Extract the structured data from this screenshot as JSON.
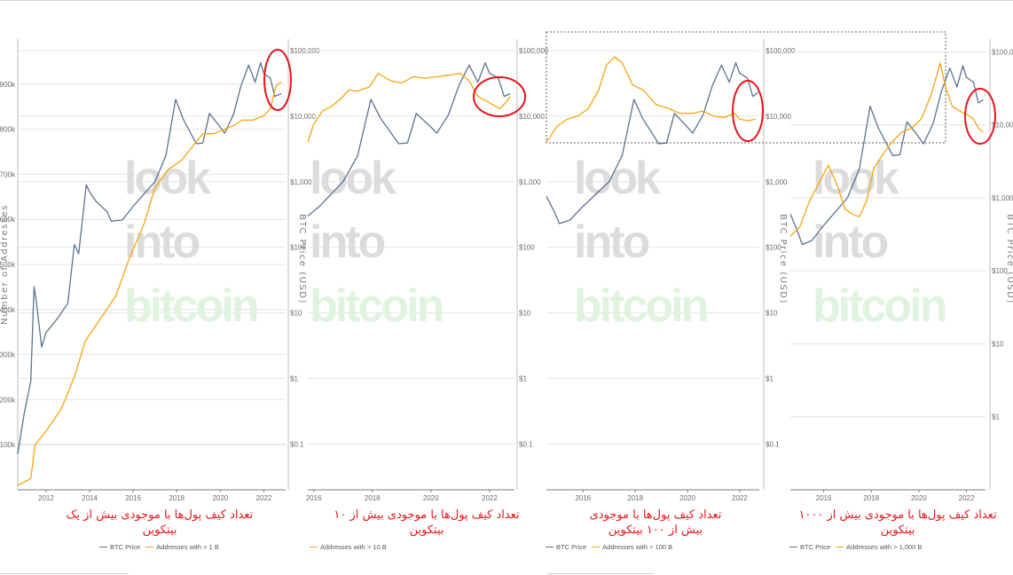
{
  "colors": {
    "btc": "#5b7290",
    "addresses": "#f6a50f",
    "highlight": "#e8141b",
    "caption": "#e5171b",
    "grid": "#e4e4e4",
    "watermark_dark": "#dcdcdc",
    "watermark_green": "#dff3df"
  },
  "watermark": [
    "look",
    "into",
    "bitcoin"
  ],
  "chart_data": [
    {
      "type": "line",
      "caption": "تعداد کیف پول‌ها با موجودی بیش از یک بیتکوین",
      "left_axis_title": "Number of Addresses",
      "right_axis_title": "BTC Price (USD)",
      "left_ticks": [
        "100k",
        "200k",
        "300k",
        "400k",
        "500k",
        "600k",
        "700k",
        "800k",
        "900k"
      ],
      "left_tick_values": [
        100000,
        200000,
        300000,
        400000,
        500000,
        600000,
        700000,
        800000,
        900000
      ],
      "left_lim": [
        0,
        1000000
      ],
      "right_ticks": [
        "$0.1",
        "$1",
        "$10",
        "$100",
        "$1,000",
        "$10,000",
        "$100,000"
      ],
      "right_tick_values": [
        0.1,
        1,
        10,
        100,
        1000,
        10000,
        100000
      ],
      "right_lim": [
        0.02,
        150000
      ],
      "log_right": true,
      "x_ticks": [
        "2012",
        "2014",
        "2016",
        "2018",
        "2020",
        "2022"
      ],
      "x_tick_values": [
        2012,
        2014,
        2016,
        2018,
        2020,
        2022
      ],
      "xlim": [
        2010.7,
        2023.0
      ],
      "legend": [
        "BTC Price",
        "Addresses with > 1 B"
      ],
      "series": [
        {
          "name": "BTC Price",
          "axis": "right",
          "x": [
            2010.7,
            2011.0,
            2011.3,
            2011.45,
            2011.55,
            2011.8,
            2012.0,
            2012.5,
            2013.0,
            2013.3,
            2013.5,
            2013.85,
            2014.0,
            2014.3,
            2014.8,
            2015.0,
            2015.5,
            2016.0,
            2016.5,
            2017.0,
            2017.5,
            2017.95,
            2018.3,
            2018.9,
            2019.2,
            2019.5,
            2019.9,
            2020.2,
            2020.6,
            2020.95,
            2021.3,
            2021.6,
            2021.85,
            2022.0,
            2022.3,
            2022.5,
            2022.8
          ],
          "y": [
            0.07,
            0.3,
            0.9,
            25,
            15,
            3,
            5,
            8,
            14,
            110,
            80,
            900,
            700,
            500,
            350,
            250,
            260,
            420,
            650,
            1000,
            2500,
            18000,
            9000,
            3800,
            3900,
            11000,
            7500,
            5500,
            10500,
            29000,
            60000,
            33000,
            65000,
            45000,
            38000,
            20000,
            22000
          ]
        },
        {
          "name": "Addresses with > 1 B",
          "axis": "left",
          "x": [
            2010.7,
            2011.3,
            2011.5,
            2012.0,
            2012.7,
            2013.3,
            2013.8,
            2014.5,
            2015.2,
            2015.8,
            2016.5,
            2017.0,
            2017.6,
            2018.2,
            2018.7,
            2019.2,
            2019.7,
            2020.2,
            2020.7,
            2021.0,
            2021.5,
            2022.0,
            2022.3,
            2022.55,
            2022.8
          ],
          "y": [
            10000,
            25000,
            100000,
            130000,
            180000,
            250000,
            330000,
            380000,
            430000,
            510000,
            590000,
            670000,
            710000,
            730000,
            760000,
            790000,
            790000,
            800000,
            810000,
            820000,
            820000,
            830000,
            845000,
            895000,
            905000
          ]
        }
      ]
    },
    {
      "type": "line",
      "caption": "تعداد کیف پول‌ها با موجودی بیش از ۱۰ بیتکوین",
      "left_axis_title": "",
      "right_axis_title": "BTC Price (USD)",
      "left_ticks": [],
      "left_tick_values": [],
      "left_lim": [
        0,
        1
      ],
      "right_ticks": [
        "$0.1",
        "$1",
        "$10",
        "$100",
        "$1,000",
        "$10,000",
        "$100,000"
      ],
      "right_tick_values": [
        0.1,
        1,
        10,
        100,
        1000,
        10000,
        100000
      ],
      "right_lim": [
        0.02,
        150000
      ],
      "log_right": true,
      "x_ticks": [
        "2016",
        "2018",
        "2020",
        "2022"
      ],
      "x_tick_values": [
        2016,
        2018,
        2020,
        2022
      ],
      "xlim": [
        2015.8,
        2022.85
      ],
      "legend": [
        "Addresses with > 10 B"
      ],
      "series": [
        {
          "name": "BTC Price",
          "axis": "right",
          "x": [
            2015.8,
            2016.2,
            2016.6,
            2017.0,
            2017.5,
            2017.95,
            2018.3,
            2018.9,
            2019.2,
            2019.5,
            2019.9,
            2020.2,
            2020.6,
            2020.95,
            2021.3,
            2021.6,
            2021.85,
            2022.0,
            2022.3,
            2022.5,
            2022.7
          ],
          "y": [
            300,
            420,
            650,
            1000,
            2500,
            18000,
            9000,
            3800,
            3900,
            11000,
            7500,
            5500,
            10500,
            29000,
            60000,
            33000,
            65000,
            45000,
            38000,
            20000,
            22000
          ]
        },
        {
          "name": "Addresses with > 10 B",
          "axis": "right",
          "x": [
            2015.8,
            2016.0,
            2016.3,
            2016.6,
            2016.9,
            2017.2,
            2017.5,
            2017.9,
            2018.2,
            2018.6,
            2019.0,
            2019.4,
            2019.8,
            2020.2,
            2020.6,
            2021.0,
            2021.3,
            2021.6,
            2021.9,
            2022.1,
            2022.35,
            2022.55,
            2022.7
          ],
          "y": [
            4000,
            7500,
            12000,
            14000,
            18000,
            25000,
            24000,
            28000,
            45000,
            35000,
            32000,
            40000,
            38000,
            40000,
            42000,
            45000,
            35000,
            20000,
            17000,
            15000,
            13000,
            16000,
            20000
          ]
        }
      ]
    },
    {
      "type": "line",
      "caption": "تعداد کیف پول‌ها با موجودی بیش از ۱۰۰ بیتکوین",
      "left_axis_title": "",
      "right_axis_title": "BTC Price (USD)",
      "left_ticks": [],
      "left_tick_values": [],
      "left_lim": [
        0,
        1
      ],
      "right_ticks": [
        "$0.1",
        "$1",
        "$10",
        "$100",
        "$1,000",
        "$10,000",
        "$100,000"
      ],
      "right_tick_values": [
        0.1,
        1,
        10,
        100,
        1000,
        10000,
        100000
      ],
      "right_lim": [
        0.02,
        150000
      ],
      "log_right": true,
      "x_ticks": [
        "2016",
        "2018",
        "2020",
        "2022"
      ],
      "x_tick_values": [
        2016,
        2018,
        2020,
        2022
      ],
      "xlim": [
        2014.6,
        2022.75
      ],
      "legend": [
        "BTC Price",
        "Addresses with > 100 B"
      ],
      "series": [
        {
          "name": "BTC Price",
          "axis": "right",
          "x": [
            2014.6,
            2014.9,
            2015.1,
            2015.5,
            2016.0,
            2016.5,
            2017.0,
            2017.5,
            2017.95,
            2018.3,
            2018.9,
            2019.2,
            2019.5,
            2019.9,
            2020.2,
            2020.6,
            2020.95,
            2021.3,
            2021.6,
            2021.85,
            2022.0,
            2022.3,
            2022.5,
            2022.7
          ],
          "y": [
            600,
            350,
            230,
            260,
            420,
            650,
            1000,
            2500,
            18000,
            9000,
            3800,
            3900,
            11000,
            7500,
            5500,
            10500,
            29000,
            60000,
            33000,
            65000,
            45000,
            38000,
            20000,
            23000
          ]
        },
        {
          "name": "Addresses with > 100 B",
          "axis": "right",
          "x": [
            2014.6,
            2015.0,
            2015.4,
            2015.8,
            2016.2,
            2016.6,
            2016.9,
            2017.2,
            2017.5,
            2017.9,
            2018.3,
            2018.8,
            2019.3,
            2019.7,
            2020.2,
            2020.6,
            2021.0,
            2021.4,
            2021.8,
            2022.0,
            2022.3,
            2022.6
          ],
          "y": [
            4000,
            7000,
            9000,
            10000,
            13000,
            25000,
            60000,
            80000,
            65000,
            30000,
            25000,
            15000,
            13000,
            11000,
            11000,
            12000,
            10000,
            9500,
            11000,
            9000,
            8500,
            9000
          ]
        }
      ]
    },
    {
      "type": "line",
      "caption": "تعداد کیف پول‌ها با موجودی بیش از ۱۰۰۰ بیتکوین",
      "left_axis_title": "",
      "right_axis_title": "BTC Price (USD)",
      "left_ticks": [],
      "left_tick_values": [],
      "left_lim": [
        0,
        1
      ],
      "right_ticks": [
        "$1",
        "$10",
        "$100",
        "$1,000",
        "$10,000",
        "$100,000"
      ],
      "right_tick_values": [
        1,
        10,
        100,
        1000,
        10000,
        100000
      ],
      "right_lim": [
        0.1,
        150000
      ],
      "log_right": true,
      "x_ticks": [
        "2016",
        "2018",
        "2020",
        "2022"
      ],
      "x_tick_values": [
        2016,
        2018,
        2020,
        2022
      ],
      "xlim": [
        2014.6,
        2022.8
      ],
      "legend": [
        "BTC Price",
        "Addresses with > 1,000 B"
      ],
      "series": [
        {
          "name": "BTC Price",
          "axis": "right",
          "x": [
            2014.6,
            2014.9,
            2015.1,
            2015.5,
            2016.0,
            2016.5,
            2017.0,
            2017.5,
            2017.95,
            2018.3,
            2018.9,
            2019.2,
            2019.5,
            2019.9,
            2020.2,
            2020.6,
            2020.95,
            2021.3,
            2021.6,
            2021.85,
            2022.0,
            2022.3,
            2022.5,
            2022.7
          ],
          "y": [
            600,
            350,
            230,
            260,
            420,
            650,
            1000,
            2500,
            18000,
            9000,
            3800,
            3900,
            11000,
            7500,
            5500,
            10500,
            29000,
            60000,
            33000,
            65000,
            45000,
            38000,
            20000,
            22000
          ]
        },
        {
          "name": "Addresses with > 1,000 B",
          "axis": "right",
          "x": [
            2014.6,
            2015.0,
            2015.4,
            2015.8,
            2016.2,
            2016.6,
            2016.9,
            2017.2,
            2017.5,
            2017.8,
            2018.1,
            2018.5,
            2018.9,
            2019.3,
            2019.7,
            2020.1,
            2020.5,
            2020.9,
            2021.1,
            2021.4,
            2021.8,
            2022.0,
            2022.3,
            2022.5,
            2022.7
          ],
          "y": [
            300,
            400,
            900,
            1600,
            2800,
            1400,
            700,
            600,
            550,
            900,
            2500,
            4000,
            6000,
            8000,
            9000,
            12000,
            25000,
            70000,
            35000,
            18000,
            15000,
            14000,
            12000,
            9000,
            8000
          ]
        }
      ]
    }
  ]
}
